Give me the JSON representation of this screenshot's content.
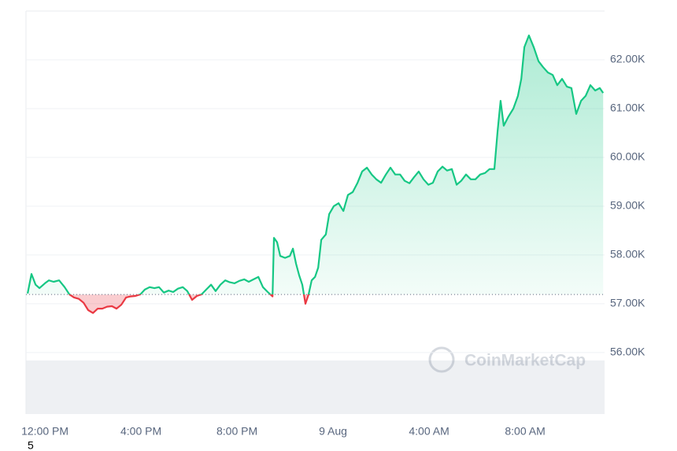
{
  "chart_data": {
    "type": "line",
    "x": [
      -0.72,
      -0.56,
      -0.39,
      -0.23,
      0,
      0.16,
      0.36,
      0.59,
      0.82,
      1.02,
      1.21,
      1.41,
      1.61,
      1.8,
      2,
      2.2,
      2.39,
      2.59,
      2.79,
      2.98,
      3.18,
      3.38,
      3.57,
      3.77,
      3.97,
      4.16,
      4.36,
      4.56,
      4.75,
      4.95,
      5.15,
      5.34,
      5.54,
      5.74,
      5.93,
      6.13,
      6.33,
      6.52,
      6.72,
      6.92,
      7.11,
      7.31,
      7.51,
      7.7,
      7.9,
      8.1,
      8.3,
      8.49,
      8.69,
      8.89,
      9.08,
      9.28,
      9.48,
      9.54,
      9.67,
      9.8,
      10,
      10.2,
      10.33,
      10.46,
      10.59,
      10.72,
      10.85,
      10.98,
      11.11,
      11.25,
      11.38,
      11.51,
      11.7,
      11.84,
      12.03,
      12.23,
      12.43,
      12.62,
      12.82,
      13.02,
      13.21,
      13.41,
      13.61,
      13.8,
      14,
      14.2,
      14.39,
      14.59,
      14.79,
      14.98,
      15.18,
      15.38,
      15.57,
      15.77,
      15.97,
      16.16,
      16.36,
      16.56,
      16.75,
      16.95,
      17.15,
      17.34,
      17.54,
      17.74,
      17.93,
      18.13,
      18.33,
      18.52,
      18.72,
      18.85,
      18.98,
      19.11,
      19.31,
      19.51,
      19.7,
      19.84,
      19.97,
      20.16,
      20.36,
      20.56,
      20.75,
      20.95,
      21.15,
      21.34,
      21.54,
      21.74,
      21.93,
      22.13,
      22.33,
      22.52,
      22.72,
      22.92,
      23.11,
      23.25
    ],
    "values": [
      57210,
      57610,
      57390,
      57320,
      57420,
      57480,
      57450,
      57480,
      57340,
      57190,
      57130,
      57100,
      57020,
      56870,
      56810,
      56900,
      56900,
      56940,
      56950,
      56900,
      56980,
      57130,
      57150,
      57160,
      57190,
      57290,
      57340,
      57320,
      57340,
      57230,
      57270,
      57240,
      57310,
      57340,
      57260,
      57080,
      57160,
      57190,
      57290,
      57390,
      57260,
      57390,
      57480,
      57440,
      57420,
      57470,
      57500,
      57450,
      57500,
      57550,
      57340,
      57240,
      57150,
      58350,
      58260,
      57980,
      57940,
      57980,
      58130,
      57820,
      57580,
      57390,
      57000,
      57190,
      57480,
      57550,
      57740,
      58310,
      58420,
      58840,
      59000,
      59060,
      58900,
      59230,
      59290,
      59480,
      59710,
      59790,
      59650,
      59550,
      59480,
      59650,
      59790,
      59650,
      59650,
      59520,
      59470,
      59600,
      59710,
      59550,
      59440,
      59480,
      59710,
      59810,
      59730,
      59760,
      59440,
      59520,
      59650,
      59550,
      59550,
      59650,
      59680,
      59760,
      59760,
      60520,
      61160,
      60650,
      60840,
      61000,
      61260,
      61610,
      62260,
      62500,
      62260,
      61970,
      61850,
      61740,
      61690,
      61480,
      61610,
      61450,
      61420,
      60890,
      61160,
      61260,
      61480,
      61370,
      61420,
      61320
    ],
    "color": "#16c784",
    "below_color": "#ea3943",
    "baseline": 57190,
    "xlim": [
      -0.79,
      23.31
    ],
    "ylim": [
      54740,
      63000
    ],
    "xticks": [
      {
        "value": 0,
        "label": "12:00 PM"
      },
      {
        "value": 4,
        "label": "4:00 PM"
      },
      {
        "value": 8,
        "label": "8:00 PM"
      },
      {
        "value": 12,
        "label": "9 Aug"
      },
      {
        "value": 16,
        "label": "4:00 AM"
      },
      {
        "value": 20,
        "label": "8:00 AM"
      }
    ],
    "yticks": [
      {
        "value": 56000,
        "label": "56.00K"
      },
      {
        "value": 57000,
        "label": "57.00K"
      },
      {
        "value": 58000,
        "label": "58.00K"
      },
      {
        "value": 59000,
        "label": "59.00K"
      },
      {
        "value": 60000,
        "label": "60.00K"
      },
      {
        "value": 61000,
        "label": "61.00K"
      },
      {
        "value": 62000,
        "label": "62.00K"
      }
    ],
    "grid": true,
    "watermark": "CoinMarketCap"
  },
  "corner_note": "5"
}
